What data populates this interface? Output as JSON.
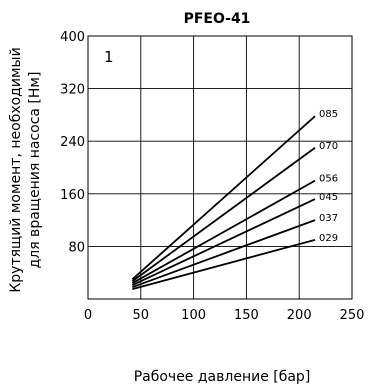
{
  "chart_data": {
    "type": "line",
    "title": "PFEO-41",
    "panel_label": "1",
    "xlabel": "Рабочее давление [бар]",
    "ylabel_line1": "Крутящий момент, необходимый",
    "ylabel_line2": "для вращения насоса [Нм]",
    "xlim": [
      0,
      250
    ],
    "ylim": [
      0,
      400
    ],
    "x_ticks": [
      0,
      50,
      100,
      150,
      200,
      250
    ],
    "y_ticks": [
      80,
      160,
      240,
      320,
      400
    ],
    "grid": true,
    "series": [
      {
        "name": "085",
        "points": [
          [
            42,
            30
          ],
          [
            215,
            278
          ]
        ]
      },
      {
        "name": "070",
        "points": [
          [
            42,
            27
          ],
          [
            215,
            230
          ]
        ]
      },
      {
        "name": "056",
        "points": [
          [
            42,
            24
          ],
          [
            215,
            180
          ]
        ]
      },
      {
        "name": "045",
        "points": [
          [
            42,
            21
          ],
          [
            215,
            152
          ]
        ]
      },
      {
        "name": "037",
        "points": [
          [
            42,
            18
          ],
          [
            215,
            120
          ]
        ]
      },
      {
        "name": "029",
        "points": [
          [
            42,
            15
          ],
          [
            215,
            90
          ]
        ]
      }
    ]
  }
}
